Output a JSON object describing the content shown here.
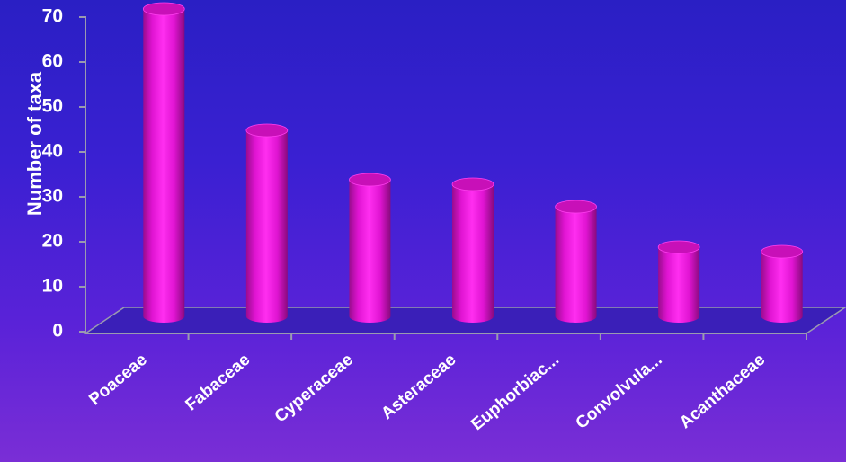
{
  "chart_data": {
    "type": "bar",
    "title": "",
    "xlabel": "",
    "ylabel": "Number of taxa",
    "categories": [
      "Poaceae",
      "Fabaceae",
      "Cyperaceae",
      "Asteraceae",
      "Euphorbiac...",
      "Convolvula...",
      "Acanthaceae"
    ],
    "values": [
      69,
      42,
      31,
      30,
      25,
      16,
      15
    ],
    "ylim": [
      0,
      70
    ],
    "yticks": [
      "0",
      "10",
      "20",
      "30",
      "40",
      "50",
      "60",
      "70"
    ],
    "style": "3d-cylinder",
    "colors": {
      "bar": "#e815d8",
      "bar_dark": "#8a0a7e",
      "bar_top": "#c810b8",
      "floor": "#3a1fb8",
      "axis": "#9a9ab0"
    }
  }
}
